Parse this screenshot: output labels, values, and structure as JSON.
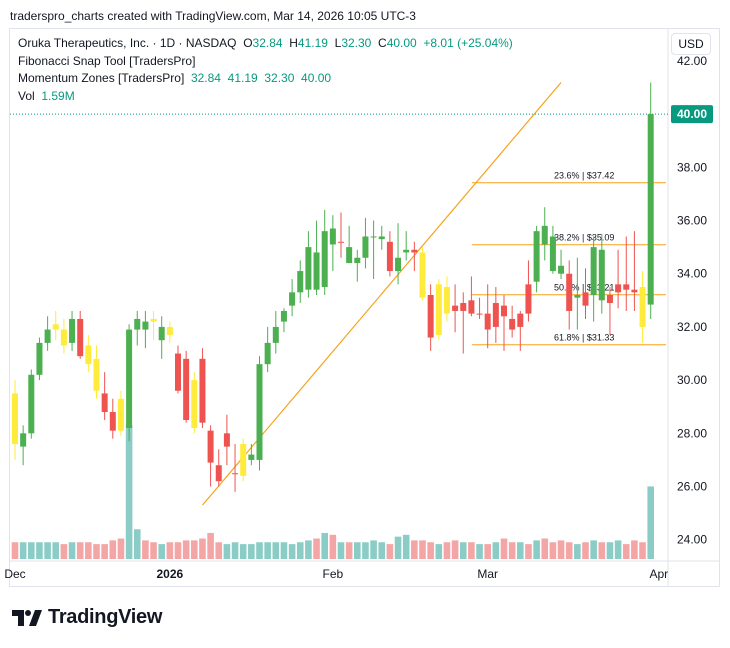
{
  "caption": "traderspro_charts created with TradingView.com, Mar 14, 2026 10:05 UTC-3",
  "legend": {
    "symbol": "Oruka Therapeutics, Inc. · 1D · NASDAQ",
    "o_label": "O",
    "o": "32.84",
    "h_label": "H",
    "h": "41.19",
    "l_label": "L",
    "l": "32.30",
    "c_label": "C",
    "c": "40.00",
    "change": "+8.01 (+25.04%)",
    "indicator1": "Fibonacci Snap Tool [TradersPro]",
    "indicator2": "Momentum Zones [TradersPro]",
    "indicator2_values": "32.84  41.19  32.30  40.00",
    "vol_label": "Vol",
    "vol_value": "1.59M"
  },
  "currency": "USD",
  "brand": "TradingView",
  "colors": {
    "up": "#4caf50",
    "down": "#ef5350",
    "neutral": "#ffeb3b",
    "vol_up": "#8bcdc6",
    "vol_down": "#f4a6a6",
    "fib": "#f7a21b",
    "trend": "#f7a21b",
    "price_line": "#089981",
    "price_tag": "#089981"
  },
  "chart_data": {
    "type": "candlestick",
    "y_axis": {
      "ticks": [
        24,
        26,
        28,
        30,
        32,
        34,
        36,
        38,
        40,
        42
      ],
      "range": [
        23.2,
        43.2
      ]
    },
    "x_axis": {
      "ticks": [
        {
          "label": "Dec",
          "index": 0
        },
        {
          "label": "2026",
          "index": 19
        },
        {
          "label": "Feb",
          "index": 39
        },
        {
          "label": "Mar",
          "index": 58
        },
        {
          "label": "Apr",
          "index": 79
        }
      ]
    },
    "last_price": "40.00",
    "fibonacci": [
      {
        "label": "23.6% | $37.42",
        "value": 37.42
      },
      {
        "label": "38.2% | $35.09",
        "value": 35.09
      },
      {
        "label": "50.0% | $33.21",
        "value": 33.21
      },
      {
        "label": "61.8% | $31.33",
        "value": 31.33
      }
    ],
    "trendline": {
      "from": {
        "index": 23,
        "value": 25.3
      },
      "to": {
        "index": 67,
        "value": 41.19
      }
    },
    "candles": [
      {
        "o": 29.5,
        "h": 30.0,
        "l": 27.0,
        "c": 27.6,
        "z": 1,
        "v": 0.9
      },
      {
        "o": 27.5,
        "h": 28.3,
        "l": 26.8,
        "c": 28.0,
        "z": 0,
        "v": 0.9
      },
      {
        "o": 28.0,
        "h": 30.4,
        "l": 27.8,
        "c": 30.2,
        "z": 0,
        "v": 0.9
      },
      {
        "o": 30.2,
        "h": 31.6,
        "l": 30.0,
        "c": 31.4,
        "z": 0,
        "v": 0.9
      },
      {
        "o": 31.4,
        "h": 32.4,
        "l": 31.1,
        "c": 31.9,
        "z": 0,
        "v": 0.9
      },
      {
        "o": 31.9,
        "h": 32.6,
        "l": 31.5,
        "c": 32.1,
        "z": 1,
        "v": 0.9
      },
      {
        "o": 31.9,
        "h": 32.3,
        "l": 31.0,
        "c": 31.3,
        "z": 1,
        "v": 0.8
      },
      {
        "o": 31.4,
        "h": 32.6,
        "l": 31.1,
        "c": 32.3,
        "z": 0,
        "v": 0.9
      },
      {
        "o": 32.3,
        "h": 32.6,
        "l": 30.8,
        "c": 30.9,
        "z": 2,
        "v": 0.9
      },
      {
        "o": 31.3,
        "h": 31.7,
        "l": 30.3,
        "c": 30.6,
        "z": 1,
        "v": 0.9
      },
      {
        "o": 30.8,
        "h": 31.3,
        "l": 29.3,
        "c": 29.6,
        "z": 1,
        "v": 0.8
      },
      {
        "o": 29.5,
        "h": 30.3,
        "l": 28.5,
        "c": 28.8,
        "z": 2,
        "v": 0.8
      },
      {
        "o": 28.8,
        "h": 29.3,
        "l": 27.8,
        "c": 28.1,
        "z": 2,
        "v": 1.0
      },
      {
        "o": 29.3,
        "h": 29.6,
        "l": 27.9,
        "c": 28.1,
        "z": 1,
        "v": 1.1
      },
      {
        "o": 28.2,
        "h": 32.1,
        "l": 27.7,
        "c": 31.9,
        "z": 0,
        "v": 7.2
      },
      {
        "o": 31.9,
        "h": 32.6,
        "l": 31.3,
        "c": 32.3,
        "z": 0,
        "v": 1.6
      },
      {
        "o": 32.2,
        "h": 32.6,
        "l": 31.2,
        "c": 31.9,
        "z": 0,
        "v": 1.0
      },
      {
        "o": 32.3,
        "h": 32.6,
        "l": 31.5,
        "c": 32.2,
        "z": 1,
        "v": 0.9
      },
      {
        "o": 31.5,
        "h": 32.4,
        "l": 30.8,
        "c": 32.0,
        "z": 0,
        "v": 0.8
      },
      {
        "o": 32.0,
        "h": 32.2,
        "l": 31.4,
        "c": 31.7,
        "z": 1,
        "v": 0.9
      },
      {
        "o": 31.0,
        "h": 31.3,
        "l": 29.5,
        "c": 29.6,
        "z": 2,
        "v": 0.9
      },
      {
        "o": 30.8,
        "h": 31.1,
        "l": 28.4,
        "c": 28.5,
        "z": 2,
        "v": 1.0
      },
      {
        "o": 30.0,
        "h": 30.3,
        "l": 28.0,
        "c": 28.2,
        "z": 1,
        "v": 1.0
      },
      {
        "o": 30.8,
        "h": 31.2,
        "l": 28.2,
        "c": 28.4,
        "z": 2,
        "v": 1.1
      },
      {
        "o": 28.1,
        "h": 28.3,
        "l": 26.0,
        "c": 26.9,
        "z": 2,
        "v": 1.4
      },
      {
        "o": 26.8,
        "h": 27.4,
        "l": 26.0,
        "c": 26.2,
        "z": 2,
        "v": 0.9
      },
      {
        "o": 27.5,
        "h": 28.7,
        "l": 26.8,
        "c": 28.0,
        "z": 2,
        "v": 0.8
      },
      {
        "o": 26.5,
        "h": 27.6,
        "l": 25.8,
        "c": 26.5,
        "z": 2,
        "v": 0.9
      },
      {
        "o": 26.4,
        "h": 27.8,
        "l": 26.2,
        "c": 27.6,
        "z": 1,
        "v": 0.8
      },
      {
        "o": 27.0,
        "h": 27.6,
        "l": 26.8,
        "c": 27.2,
        "z": 0,
        "v": 0.8
      },
      {
        "o": 27.0,
        "h": 30.9,
        "l": 26.6,
        "c": 30.6,
        "z": 0,
        "v": 0.9
      },
      {
        "o": 30.6,
        "h": 32.0,
        "l": 30.3,
        "c": 31.4,
        "z": 0,
        "v": 0.9
      },
      {
        "o": 31.4,
        "h": 32.6,
        "l": 31.0,
        "c": 32.0,
        "z": 0,
        "v": 0.9
      },
      {
        "o": 32.2,
        "h": 32.7,
        "l": 31.8,
        "c": 32.6,
        "z": 0,
        "v": 0.9
      },
      {
        "o": 32.8,
        "h": 33.8,
        "l": 32.4,
        "c": 33.3,
        "z": 0,
        "v": 0.8
      },
      {
        "o": 33.3,
        "h": 34.5,
        "l": 32.9,
        "c": 34.1,
        "z": 0,
        "v": 0.9
      },
      {
        "o": 33.4,
        "h": 35.6,
        "l": 33.1,
        "c": 35.0,
        "z": 0,
        "v": 1.0
      },
      {
        "o": 34.8,
        "h": 36.0,
        "l": 33.2,
        "c": 33.4,
        "z": 0,
        "v": 1.1
      },
      {
        "o": 33.5,
        "h": 36.4,
        "l": 33.2,
        "c": 35.6,
        "z": 0,
        "v": 1.4
      },
      {
        "o": 35.7,
        "h": 36.2,
        "l": 34.1,
        "c": 35.1,
        "z": 0,
        "v": 1.3
      },
      {
        "o": 35.2,
        "h": 36.3,
        "l": 34.6,
        "c": 35.2,
        "z": 2,
        "v": 0.9
      },
      {
        "o": 35.0,
        "h": 35.8,
        "l": 34.4,
        "c": 34.4,
        "z": 0,
        "v": 0.9
      },
      {
        "o": 34.4,
        "h": 34.9,
        "l": 33.7,
        "c": 34.6,
        "z": 0,
        "v": 0.9
      },
      {
        "o": 34.6,
        "h": 36.1,
        "l": 34.2,
        "c": 35.4,
        "z": 0,
        "v": 0.9
      },
      {
        "o": 35.4,
        "h": 36.0,
        "l": 33.8,
        "c": 35.4,
        "z": 0,
        "v": 1.0
      },
      {
        "o": 35.3,
        "h": 35.8,
        "l": 34.9,
        "c": 35.4,
        "z": 0,
        "v": 0.9
      },
      {
        "o": 35.2,
        "h": 35.6,
        "l": 33.9,
        "c": 34.1,
        "z": 2,
        "v": 0.8
      },
      {
        "o": 34.1,
        "h": 35.9,
        "l": 33.6,
        "c": 34.6,
        "z": 0,
        "v": 1.2
      },
      {
        "o": 34.8,
        "h": 35.6,
        "l": 34.5,
        "c": 34.9,
        "z": 0,
        "v": 1.3
      },
      {
        "o": 34.9,
        "h": 35.2,
        "l": 34.1,
        "c": 34.8,
        "z": 2,
        "v": 1.0
      },
      {
        "o": 34.8,
        "h": 35.0,
        "l": 33.0,
        "c": 33.1,
        "z": 1,
        "v": 1.0
      },
      {
        "o": 33.2,
        "h": 33.6,
        "l": 31.1,
        "c": 31.6,
        "z": 2,
        "v": 0.9
      },
      {
        "o": 31.7,
        "h": 33.8,
        "l": 31.5,
        "c": 33.6,
        "z": 1,
        "v": 0.8
      },
      {
        "o": 33.5,
        "h": 33.9,
        "l": 32.2,
        "c": 32.5,
        "z": 1,
        "v": 0.9
      },
      {
        "o": 32.8,
        "h": 33.6,
        "l": 31.8,
        "c": 32.6,
        "z": 2,
        "v": 1.0
      },
      {
        "o": 32.6,
        "h": 33.3,
        "l": 31.0,
        "c": 32.9,
        "z": 2,
        "v": 0.9
      },
      {
        "o": 33.0,
        "h": 33.9,
        "l": 32.4,
        "c": 32.5,
        "z": 2,
        "v": 0.9
      },
      {
        "o": 32.5,
        "h": 33.1,
        "l": 32.3,
        "c": 32.5,
        "z": 2,
        "v": 0.8
      },
      {
        "o": 32.5,
        "h": 33.6,
        "l": 31.2,
        "c": 31.9,
        "z": 2,
        "v": 0.8
      },
      {
        "o": 32.0,
        "h": 33.5,
        "l": 31.4,
        "c": 32.9,
        "z": 2,
        "v": 0.9
      },
      {
        "o": 32.8,
        "h": 33.2,
        "l": 31.1,
        "c": 32.4,
        "z": 2,
        "v": 1.1
      },
      {
        "o": 32.3,
        "h": 32.8,
        "l": 31.6,
        "c": 31.9,
        "z": 2,
        "v": 0.9
      },
      {
        "o": 32.0,
        "h": 32.6,
        "l": 31.1,
        "c": 32.5,
        "z": 2,
        "v": 0.9
      },
      {
        "o": 33.6,
        "h": 34.5,
        "l": 32.2,
        "c": 32.5,
        "z": 2,
        "v": 0.8
      },
      {
        "o": 33.7,
        "h": 35.8,
        "l": 33.3,
        "c": 35.6,
        "z": 0,
        "v": 1.0
      },
      {
        "o": 35.8,
        "h": 36.5,
        "l": 34.5,
        "c": 35.1,
        "z": 0,
        "v": 1.1
      },
      {
        "o": 35.4,
        "h": 35.8,
        "l": 34.0,
        "c": 34.1,
        "z": 0,
        "v": 0.9
      },
      {
        "o": 34.3,
        "h": 34.9,
        "l": 33.8,
        "c": 34.0,
        "z": 0,
        "v": 1.0
      },
      {
        "o": 34.0,
        "h": 34.5,
        "l": 31.9,
        "c": 32.6,
        "z": 2,
        "v": 0.9
      },
      {
        "o": 33.1,
        "h": 34.6,
        "l": 31.9,
        "c": 33.2,
        "z": 0,
        "v": 0.8
      },
      {
        "o": 33.3,
        "h": 34.2,
        "l": 32.3,
        "c": 32.8,
        "z": 2,
        "v": 0.9
      },
      {
        "o": 33.2,
        "h": 35.4,
        "l": 32.2,
        "c": 35.0,
        "z": 0,
        "v": 1.0
      },
      {
        "o": 34.9,
        "h": 35.5,
        "l": 32.5,
        "c": 33.0,
        "z": 0,
        "v": 0.9
      },
      {
        "o": 32.9,
        "h": 33.5,
        "l": 31.7,
        "c": 33.2,
        "z": 2,
        "v": 0.9
      },
      {
        "o": 33.3,
        "h": 34.9,
        "l": 32.7,
        "c": 33.6,
        "z": 2,
        "v": 1.0
      },
      {
        "o": 33.6,
        "h": 35.4,
        "l": 32.6,
        "c": 33.4,
        "z": 2,
        "v": 0.8
      },
      {
        "o": 33.4,
        "h": 35.6,
        "l": 32.6,
        "c": 33.3,
        "z": 2,
        "v": 1.0
      },
      {
        "o": 33.5,
        "h": 34.1,
        "l": 31.4,
        "c": 32.0,
        "z": 1,
        "v": 0.9
      },
      {
        "o": 32.84,
        "h": 41.19,
        "l": 32.3,
        "c": 40.0,
        "z": 0,
        "v": 3.9
      }
    ]
  }
}
